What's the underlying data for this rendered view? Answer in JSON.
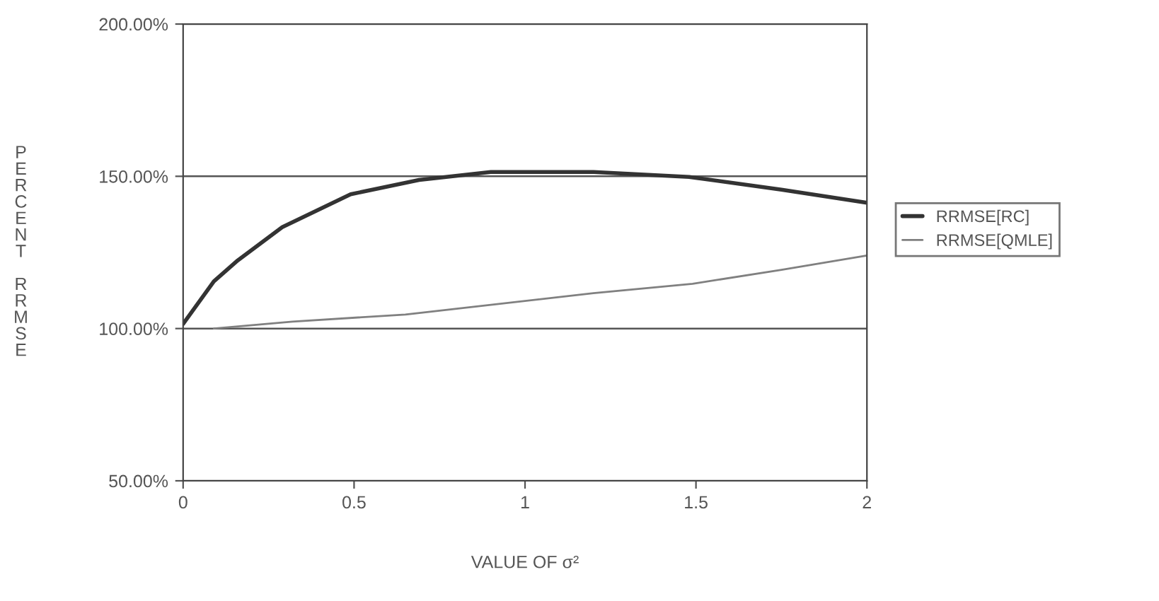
{
  "chart_data": {
    "type": "line",
    "xlabel": "VALUE OF σ²",
    "ylabel": "PERCENT RRMSE",
    "xlim": [
      0,
      2
    ],
    "xticks": [
      0,
      0.5,
      1,
      1.5,
      2
    ],
    "ylim": [
      50,
      200
    ],
    "yticks": [
      {
        "value": 50,
        "label": "50.00%"
      },
      {
        "value": 100,
        "label": "100.00%"
      },
      {
        "value": 150,
        "label": "150.00%"
      },
      {
        "value": 200,
        "label": "200.00%"
      }
    ],
    "grid": "y",
    "legend": "right",
    "line_style": "solid",
    "marker": "none",
    "series": [
      {
        "name": "RRMSE[RC]",
        "color": "#333333",
        "x": [
          0,
          0.09,
          0.16,
          0.29,
          0.49,
          0.69,
          0.9,
          1.2,
          1.48,
          1.75,
          2
        ],
        "values": [
          101.5,
          115.5,
          122.4,
          133.3,
          144.1,
          148.8,
          151.4,
          151.4,
          149.8,
          145.6,
          141.3
        ]
      },
      {
        "name": "RRMSE[QMLE]",
        "color": "#808080",
        "x": [
          0.09,
          0.32,
          0.65,
          1.2,
          1.49,
          1.75,
          2
        ],
        "values": [
          100,
          102.3,
          104.6,
          111.6,
          114.7,
          119.3,
          124.0
        ]
      }
    ]
  }
}
